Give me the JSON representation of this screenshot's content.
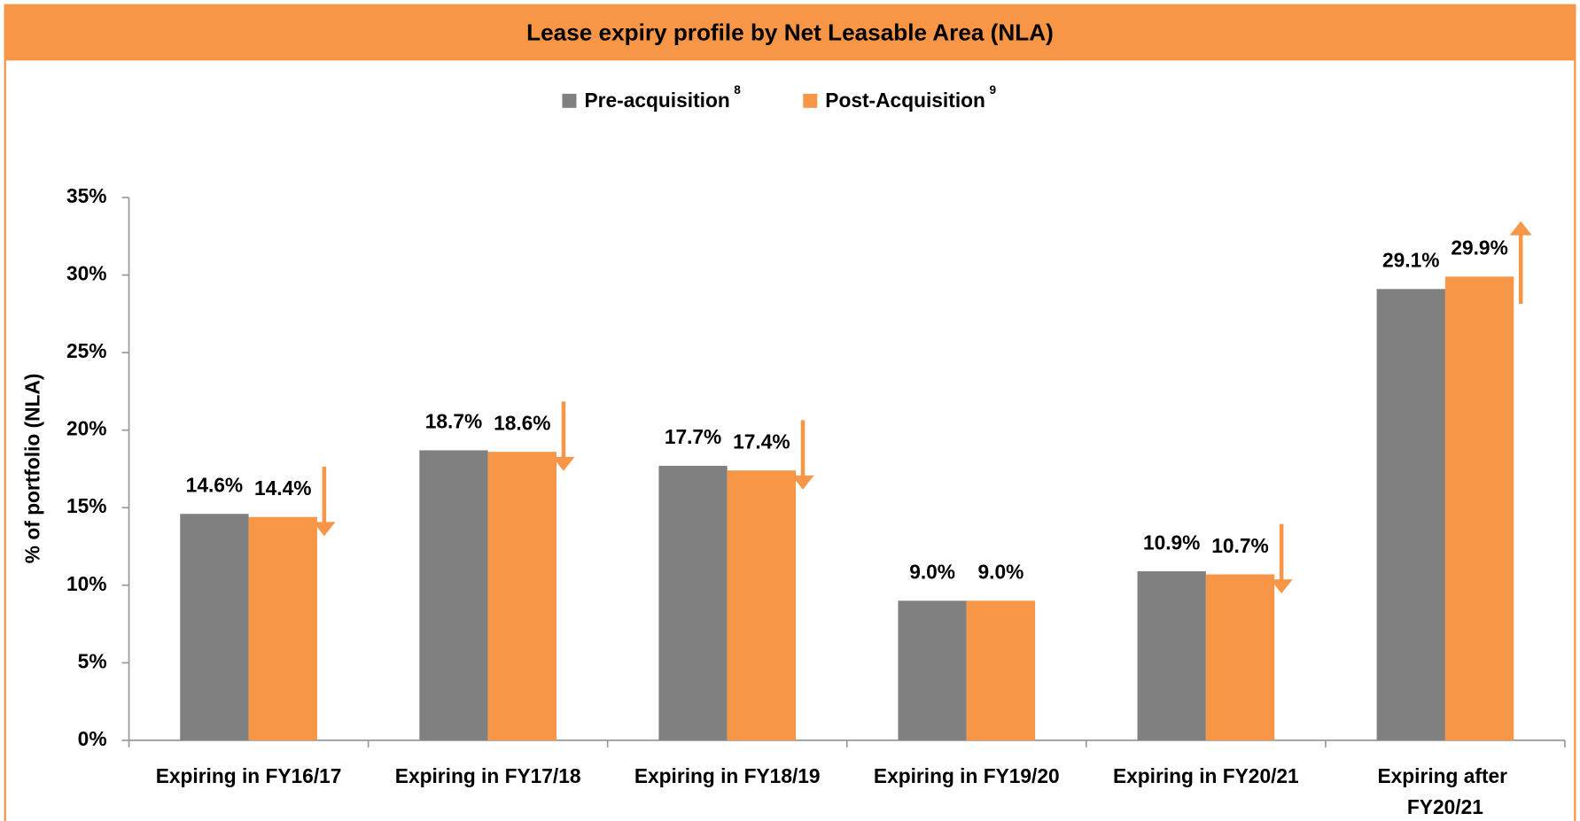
{
  "chart_data": {
    "type": "bar",
    "title": "Lease expiry profile by Net Leasable Area (NLA)",
    "y_label": "% of portfolio (NLA)",
    "categories": [
      "Expiring in FY16/17",
      "Expiring in FY17/18",
      "Expiring in FY18/19",
      "Expiring in FY19/20",
      "Expiring in FY20/21",
      "Expiring after FY20/21"
    ],
    "series": [
      {
        "name": "Pre-acquisition",
        "note": "8",
        "color": "#808080",
        "values": [
          14.6,
          18.7,
          17.7,
          9.0,
          10.9,
          29.1
        ],
        "value_labels": [
          "14.6%",
          "18.7%",
          "17.7%",
          "9.0%",
          "10.9%",
          "29.1%"
        ]
      },
      {
        "name": "Post-Acquisition",
        "note": "9",
        "color": "#f79646",
        "values": [
          14.4,
          18.6,
          17.4,
          9.0,
          10.7,
          29.9
        ],
        "value_labels": [
          "14.4%",
          "18.6%",
          "17.4%",
          "9.0%",
          "10.7%",
          "29.9%"
        ]
      }
    ],
    "ylim": [
      0,
      35
    ],
    "yticks": [
      {
        "value": 0,
        "label": "0%"
      },
      {
        "value": 5,
        "label": "5%"
      },
      {
        "value": 10,
        "label": "10%"
      },
      {
        "value": 15,
        "label": "15%"
      },
      {
        "value": 20,
        "label": "20%"
      },
      {
        "value": 25,
        "label": "25%"
      },
      {
        "value": 30,
        "label": "30%"
      },
      {
        "value": 35,
        "label": "35%"
      }
    ],
    "legend": "top",
    "header_color": "#f79646"
  }
}
